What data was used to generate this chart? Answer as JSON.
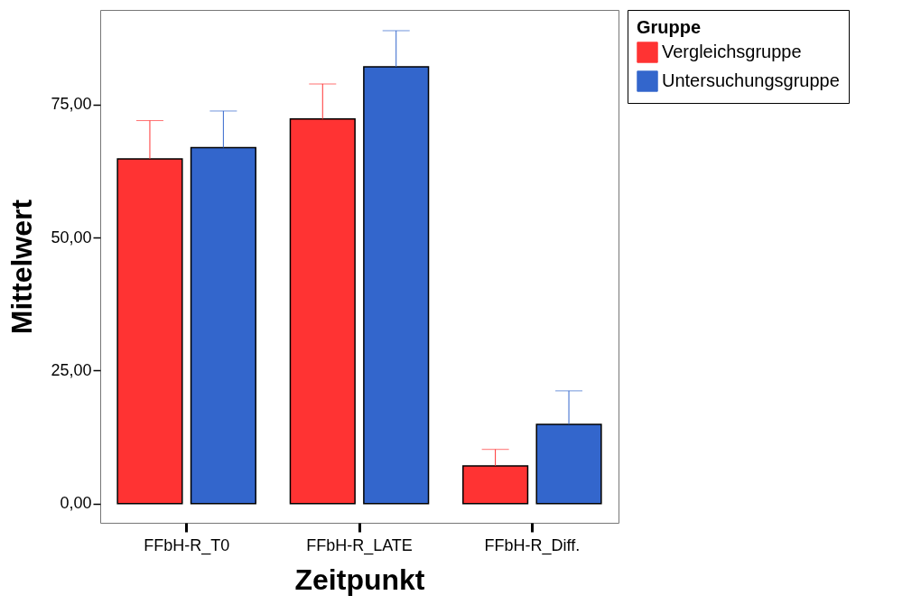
{
  "chart_data": {
    "type": "bar",
    "xlabel": "Zeitpunkt",
    "ylabel": "Mittelwert",
    "legend_title": "Gruppe",
    "legend": "right",
    "grid": false,
    "categories": [
      "FFbH-R_T0",
      "FFbH-R_LATE",
      "FFbH-R_Diff."
    ],
    "ylim": [
      -3.6,
      92.8
    ],
    "yticks": [
      {
        "value": 0,
        "label": "0,00"
      },
      {
        "value": 25,
        "label": "25,00"
      },
      {
        "value": 50,
        "label": "50,00"
      },
      {
        "value": 75,
        "label": "75,00"
      }
    ],
    "series": [
      {
        "name": "Vergleichsgruppe",
        "color": "#ff3333",
        "values": [
          64.8,
          72.3,
          7.1
        ],
        "errors": [
          [
            64.8,
            72.0
          ],
          [
            72.3,
            78.9
          ],
          [
            7.1,
            10.2
          ]
        ]
      },
      {
        "name": "Untersuchungsgruppe",
        "color": "#3366cc",
        "values": [
          66.9,
          82.1,
          14.9
        ],
        "errors": [
          [
            66.9,
            73.8
          ],
          [
            82.1,
            88.9
          ],
          [
            14.9,
            21.2
          ]
        ]
      }
    ]
  }
}
